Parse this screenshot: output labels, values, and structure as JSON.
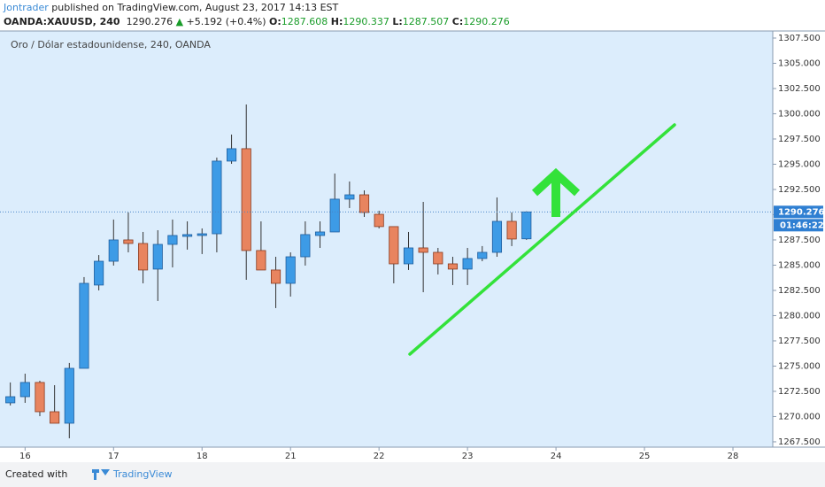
{
  "header": {
    "author": "Jontrader",
    "published": "published on TradingView.com, August 23, 2017 14:13 EST",
    "symbol": "OANDA:XAUUSD, 240",
    "last": "1290.276",
    "change": "+5.192 (+0.4%)",
    "ohlc": [
      {
        "label": "O:",
        "value": "1287.608"
      },
      {
        "label": "H:",
        "value": "1290.337"
      },
      {
        "label": "L:",
        "value": "1287.507"
      },
      {
        "label": "C:",
        "value": "1290.276"
      }
    ]
  },
  "chart_data": {
    "type": "candlestick",
    "title": "Oro / Dólar estadounidense, 240, OANDA",
    "open": [
      1271.36,
      1271.97,
      1273.38,
      1270.48,
      1269.34,
      1274.78,
      1283.03,
      1285.39,
      1287.5,
      1287.15,
      1284.61,
      1287.06,
      1287.85,
      1287.94,
      1288.11,
      1295.31,
      1296.54,
      1286.45,
      1284.52,
      1283.2,
      1285.83,
      1287.94,
      1288.29,
      1291.54,
      1291.97,
      1290.04,
      1288.82,
      1285.13,
      1286.71,
      1286.27,
      1285.13,
      1284.61,
      1285.66,
      1286.27,
      1289.34,
      1287.608
    ],
    "high": [
      1273.38,
      1274.25,
      1273.55,
      1273.11,
      1275.31,
      1283.82,
      1286.0,
      1289.52,
      1290.22,
      1288.29,
      1288.46,
      1289.52,
      1289.34,
      1288.64,
      1295.66,
      1297.94,
      1300.92,
      1289.34,
      1285.83,
      1286.27,
      1289.34,
      1289.34,
      1294.08,
      1293.29,
      1292.41,
      1290.39,
      1288.82,
      1288.29,
      1291.27,
      1286.71,
      1285.83,
      1286.71,
      1286.89,
      1291.71,
      1290.22,
      1290.337
    ],
    "low": [
      1271.1,
      1271.36,
      1270.04,
      1269.34,
      1267.85,
      1274.78,
      1282.5,
      1284.96,
      1286.27,
      1283.2,
      1281.45,
      1284.78,
      1286.54,
      1286.1,
      1286.27,
      1295.04,
      1283.55,
      1284.52,
      1280.75,
      1281.89,
      1284.96,
      1286.71,
      1288.29,
      1290.66,
      1289.78,
      1288.64,
      1283.2,
      1284.52,
      1282.32,
      1284.08,
      1283.03,
      1283.03,
      1285.39,
      1285.83,
      1286.89,
      1287.507
    ],
    "close": [
      1271.97,
      1273.38,
      1270.48,
      1269.34,
      1274.78,
      1283.2,
      1285.39,
      1287.5,
      1287.15,
      1284.52,
      1287.06,
      1287.94,
      1288.03,
      1288.11,
      1295.31,
      1296.54,
      1286.45,
      1284.52,
      1283.2,
      1285.83,
      1288.03,
      1288.29,
      1291.54,
      1291.97,
      1290.22,
      1288.82,
      1285.13,
      1286.71,
      1286.27,
      1285.13,
      1284.61,
      1285.66,
      1286.27,
      1289.34,
      1287.59,
      1290.276
    ],
    "up_color": "#3d9be6",
    "down_color": "#e8845f",
    "up_border": "#1f5e9e",
    "down_border": "#8a3b1f",
    "wick_color": "#333333",
    "xlim": [
      -0.7,
      51.7
    ],
    "xticks": [
      {
        "value": 1,
        "label": "16"
      },
      {
        "value": 7,
        "label": "17"
      },
      {
        "value": 13,
        "label": "18"
      },
      {
        "value": 19,
        "label": "21"
      },
      {
        "value": 25,
        "label": "22"
      },
      {
        "value": 31,
        "label": "23"
      },
      {
        "value": 37,
        "label": "24"
      },
      {
        "value": 43,
        "label": "25"
      },
      {
        "value": 49,
        "label": "28"
      }
    ],
    "ylim": [
      1266.97,
      1308.2
    ],
    "yticks": [
      {
        "value": 1267.5,
        "label": "1267.500"
      },
      {
        "value": 1270,
        "label": "1270.000"
      },
      {
        "value": 1272.5,
        "label": "1272.500"
      },
      {
        "value": 1275,
        "label": "1275.000"
      },
      {
        "value": 1277.5,
        "label": "1277.500"
      },
      {
        "value": 1280,
        "label": "1280.000"
      },
      {
        "value": 1282.5,
        "label": "1282.500"
      },
      {
        "value": 1285,
        "label": "1285.000"
      },
      {
        "value": 1287.5,
        "label": "1287.500"
      },
      {
        "value": 1290,
        "label": "1290.000"
      },
      {
        "value": 1292.5,
        "label": "1292.500"
      },
      {
        "value": 1295,
        "label": "1295.000"
      },
      {
        "value": 1297.5,
        "label": "1297.500"
      },
      {
        "value": 1300,
        "label": "1300.000"
      },
      {
        "value": 1302.5,
        "label": "1302.500"
      },
      {
        "value": 1305,
        "label": "1305.000"
      },
      {
        "value": 1307.5,
        "label": "1307.500"
      }
    ],
    "grid": true,
    "price_label": "1290.276",
    "countdown": "01:46:22",
    "price_line_color": "#4a86c8"
  },
  "footer": {
    "created": "Created with",
    "brand": "TradingView"
  }
}
